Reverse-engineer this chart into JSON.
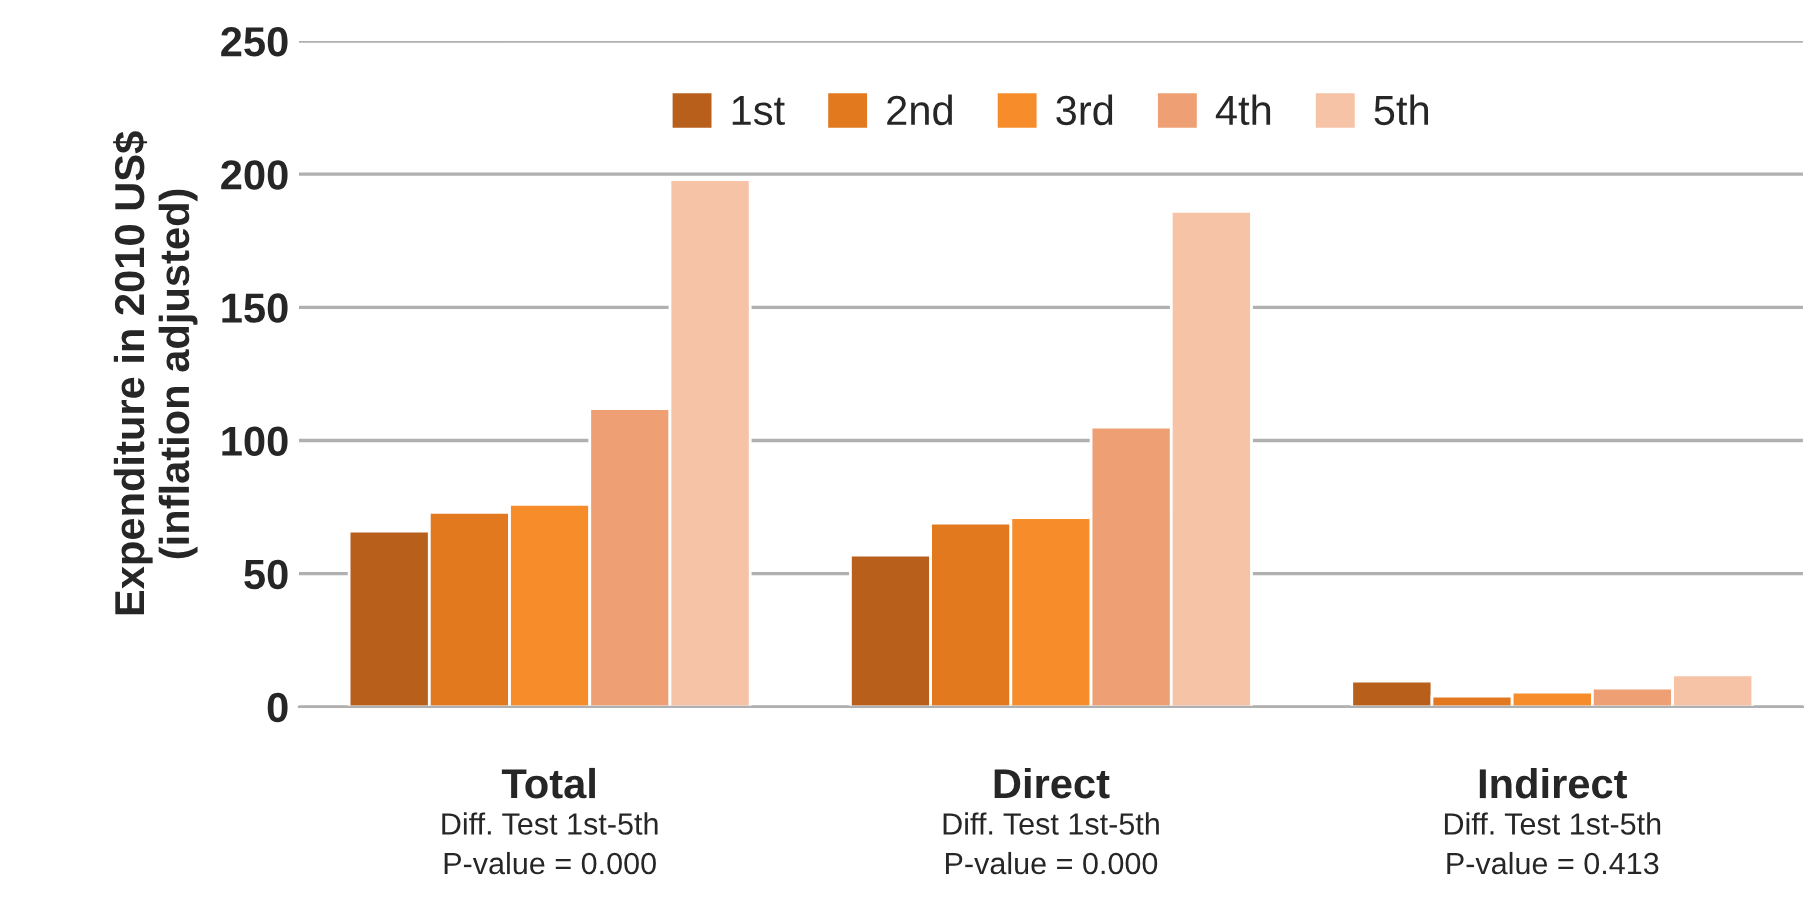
{
  "chart_data": {
    "type": "bar",
    "ylabel": "Expenditure in 2010 US$\n(inflation adjusted)",
    "categories": [
      "Total",
      "Direct",
      "Indirect"
    ],
    "series": [
      {
        "name": "1st",
        "color": "#b95f1c",
        "values": [
          66,
          57,
          9.6
        ]
      },
      {
        "name": "2nd",
        "color": "#e2791f",
        "values": [
          73,
          69,
          4
        ]
      },
      {
        "name": "3rd",
        "color": "#f78c2b",
        "values": [
          76,
          71,
          5.5
        ]
      },
      {
        "name": "4th",
        "color": "#eea074",
        "values": [
          112,
          105,
          7
        ]
      },
      {
        "name": "5th",
        "color": "#f6c3a6",
        "values": [
          198,
          186,
          12
        ]
      }
    ],
    "ylim": [
      0,
      250
    ],
    "yticks": [
      0,
      50,
      100,
      150,
      200,
      250
    ],
    "grid": "y",
    "legend": "top",
    "annotations": [
      "Diff. Test 1st-5th\nP-value = 0.000",
      "Diff. Test 1st-5th\nP-value = 0.000",
      "Diff. Test 1st-5th\nP-value = 0.413"
    ]
  }
}
